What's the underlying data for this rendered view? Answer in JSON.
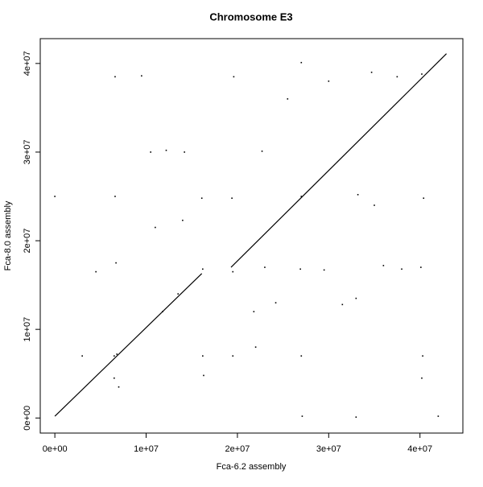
{
  "chart_data": {
    "type": "scatter",
    "title": "Chromosome E3",
    "x_label": "Fca-6.2 assembly",
    "y_label": "Fca-8.0 assembly",
    "xlim": [
      -1600000,
      44700000
    ],
    "ylim": [
      -1700000,
      42800000
    ],
    "xticks": [
      {
        "value": 0,
        "label": "0e+00"
      },
      {
        "value": 10000000,
        "label": "1e+07"
      },
      {
        "value": 20000000,
        "label": "2e+07"
      },
      {
        "value": 30000000,
        "label": "3e+07"
      },
      {
        "value": 40000000,
        "label": "4e+07"
      }
    ],
    "yticks": [
      {
        "value": 0,
        "label": "0e+00"
      },
      {
        "value": 10000000,
        "label": "1e+07"
      },
      {
        "value": 20000000,
        "label": "2e+07"
      },
      {
        "value": 30000000,
        "label": "3e+07"
      },
      {
        "value": 40000000,
        "label": "4e+07"
      }
    ],
    "series": [
      {
        "style": "line",
        "color": "#000000",
        "x": [
          0,
          16100000
        ],
        "values": [
          200000,
          16300000
        ]
      },
      {
        "style": "line",
        "color": "#000000",
        "x": [
          19300000,
          42900000
        ],
        "values": [
          17000000,
          41100000
        ]
      },
      {
        "style": "points",
        "color": "#000000",
        "x": [
          6500000,
          6600000,
          6700000,
          6500000,
          6800000,
          6600000,
          16200000,
          16100000,
          16300000,
          16200000,
          19500000,
          19400000,
          19600000,
          19500000,
          27000000,
          27100000,
          26900000,
          27000000,
          27000000,
          40200000,
          40300000,
          40100000,
          40200000,
          40400000,
          10500000,
          11800000,
          12200000,
          13500000,
          22700000,
          23000000,
          25500000,
          31500000,
          33000000,
          33200000,
          36000000,
          37500000,
          9500000,
          14000000,
          14200000,
          21800000,
          24200000,
          29500000,
          34700000,
          38000000,
          3000000,
          4500000,
          0,
          42000000,
          33000000,
          7000000,
          30000000,
          22000000,
          35000000,
          11000000
        ],
        "values": [
          7000000,
          38500000,
          17500000,
          4500000,
          7200000,
          25000000,
          16800000,
          24800000,
          4800000,
          7000000,
          16500000,
          24800000,
          38500000,
          7000000,
          25000000,
          200000,
          16800000,
          7000000,
          40100000,
          38800000,
          7000000,
          17000000,
          4500000,
          24800000,
          30000000,
          12000000,
          30200000,
          14000000,
          30100000,
          17000000,
          36000000,
          12800000,
          13500000,
          25200000,
          17200000,
          38500000,
          38600000,
          22300000,
          30000000,
          12000000,
          13000000,
          16700000,
          39000000,
          16800000,
          7000000,
          16500000,
          25000000,
          200000,
          100000,
          3500000,
          38000000,
          8000000,
          24000000,
          21500000
        ]
      }
    ]
  }
}
